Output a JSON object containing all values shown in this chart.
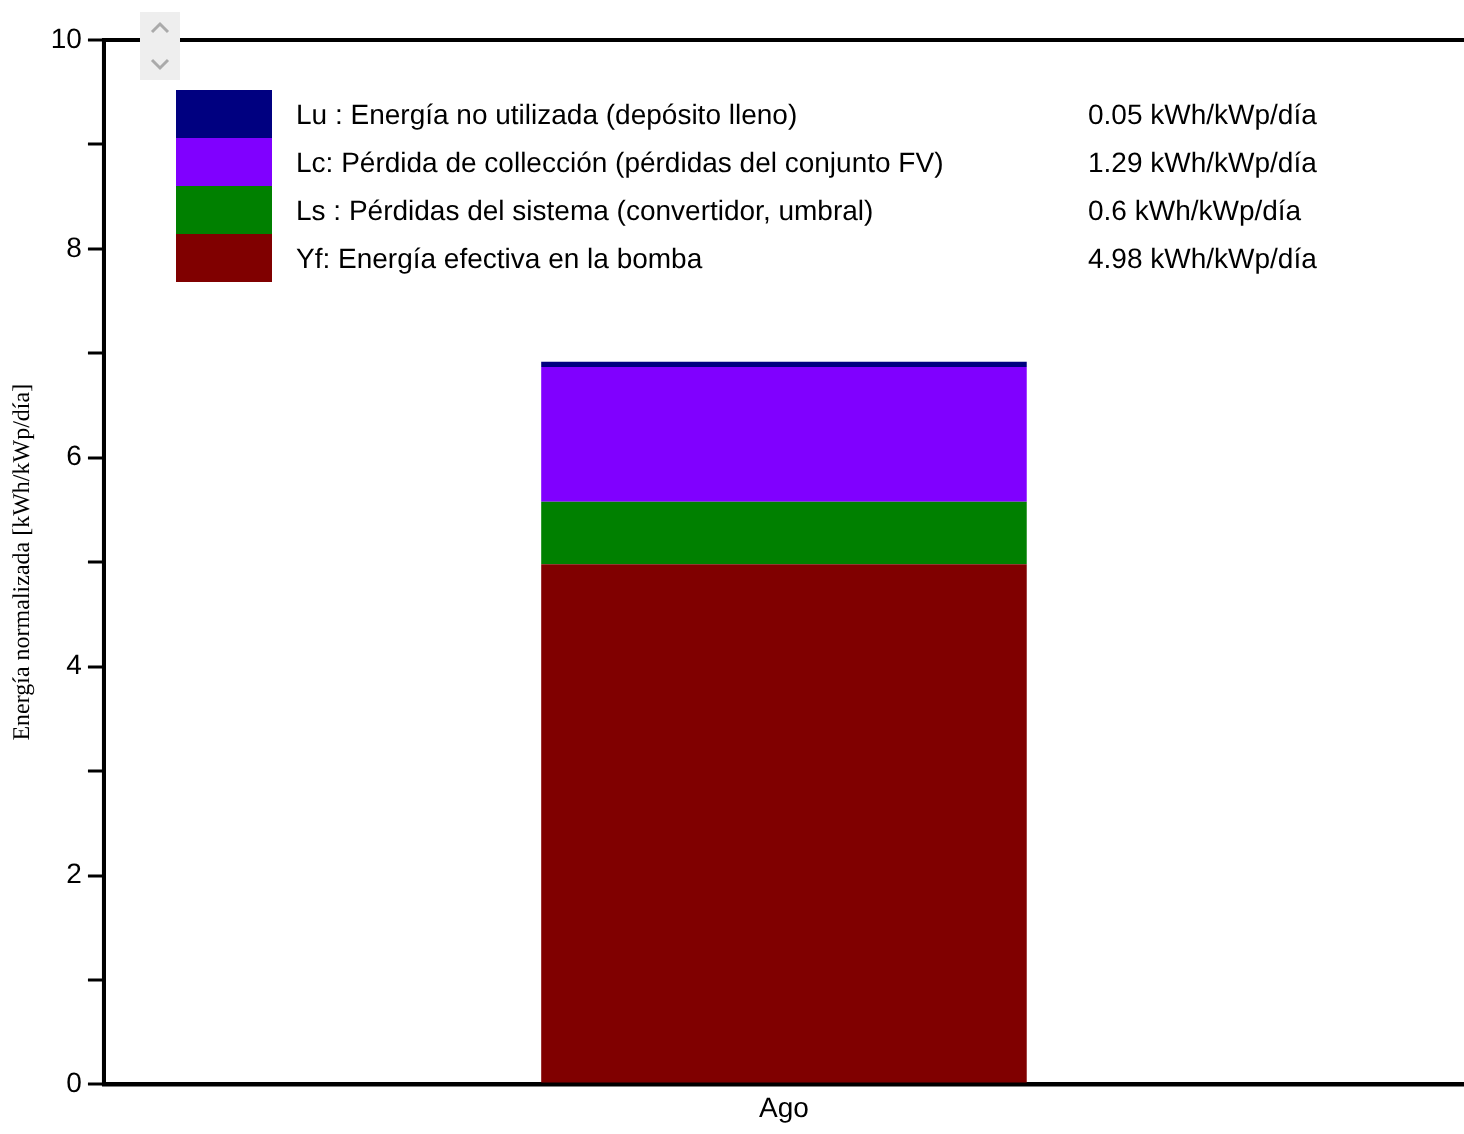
{
  "chart_data": {
    "type": "bar",
    "stacked": true,
    "ylabel": "Energía normalizada [kWh/kWp/día]",
    "categories": [
      "Ago"
    ],
    "ylim": [
      0,
      10
    ],
    "yticks": [
      0,
      {
        "value": 1,
        "label": null
      },
      2,
      {
        "value": 3,
        "label": null
      },
      4,
      {
        "value": 5,
        "label": null
      },
      6,
      {
        "value": 7,
        "label": null
      },
      8,
      {
        "value": 9,
        "label": null
      },
      10
    ],
    "grid": false,
    "legend": "top left",
    "annotations": [
      "0.05 kWh/kWp/día",
      "1.29 kWh/kWp/día",
      "0.6 kWh/kWp/día",
      "4.98 kWh/kWp/día"
    ],
    "series": [
      {
        "name": "Yf: Energía efectiva en la bomba",
        "color": "#800000",
        "values": [
          4.98
        ]
      },
      {
        "name": "Ls : Pérdidas del sistema (convertidor, umbral)",
        "color": "#008000",
        "values": [
          0.6
        ]
      },
      {
        "name": "Lc: Pérdida de collección (pérdidas del conjunto FV)",
        "color": "#8000ff",
        "values": [
          1.29
        ]
      },
      {
        "name": "Lu : Energía no utilizada (depósito lleno)",
        "color": "#000080",
        "values": [
          0.05
        ]
      }
    ]
  }
}
